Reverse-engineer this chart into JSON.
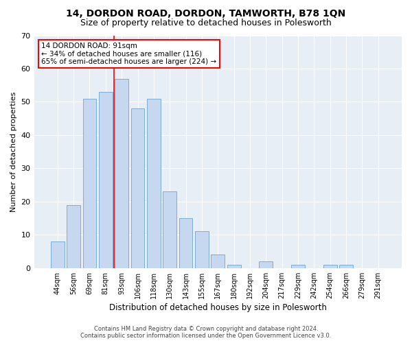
{
  "title": "14, DORDON ROAD, DORDON, TAMWORTH, B78 1QN",
  "subtitle": "Size of property relative to detached houses in Polesworth",
  "xlabel": "Distribution of detached houses by size in Polesworth",
  "ylabel": "Number of detached properties",
  "categories": [
    "44sqm",
    "56sqm",
    "69sqm",
    "81sqm",
    "93sqm",
    "106sqm",
    "118sqm",
    "130sqm",
    "143sqm",
    "155sqm",
    "167sqm",
    "180sqm",
    "192sqm",
    "204sqm",
    "217sqm",
    "229sqm",
    "242sqm",
    "254sqm",
    "266sqm",
    "279sqm",
    "291sqm"
  ],
  "values": [
    8,
    19,
    51,
    53,
    57,
    48,
    51,
    23,
    15,
    11,
    4,
    1,
    0,
    2,
    0,
    1,
    0,
    1,
    1,
    0,
    0
  ],
  "bar_color": "#c5d8f0",
  "bar_edgecolor": "#7aadd4",
  "fig_background": "#ffffff",
  "ax_background": "#e8eef5",
  "gridcolor": "#ffffff",
  "annotation_text": "14 DORDON ROAD: 91sqm\n← 34% of detached houses are smaller (116)\n65% of semi-detached houses are larger (224) →",
  "vline_x": 3.5,
  "ylim": [
    0,
    70
  ],
  "yticks": [
    0,
    10,
    20,
    30,
    40,
    50,
    60,
    70
  ],
  "title_fontsize": 10,
  "subtitle_fontsize": 9,
  "ylabel_fontsize": 8,
  "xlabel_fontsize": 8.5,
  "tick_fontsize": 7,
  "ann_fontsize": 7.5,
  "footer1": "Contains HM Land Registry data © Crown copyright and database right 2024.",
  "footer2": "Contains public sector information licensed under the Open Government Licence v3.0."
}
